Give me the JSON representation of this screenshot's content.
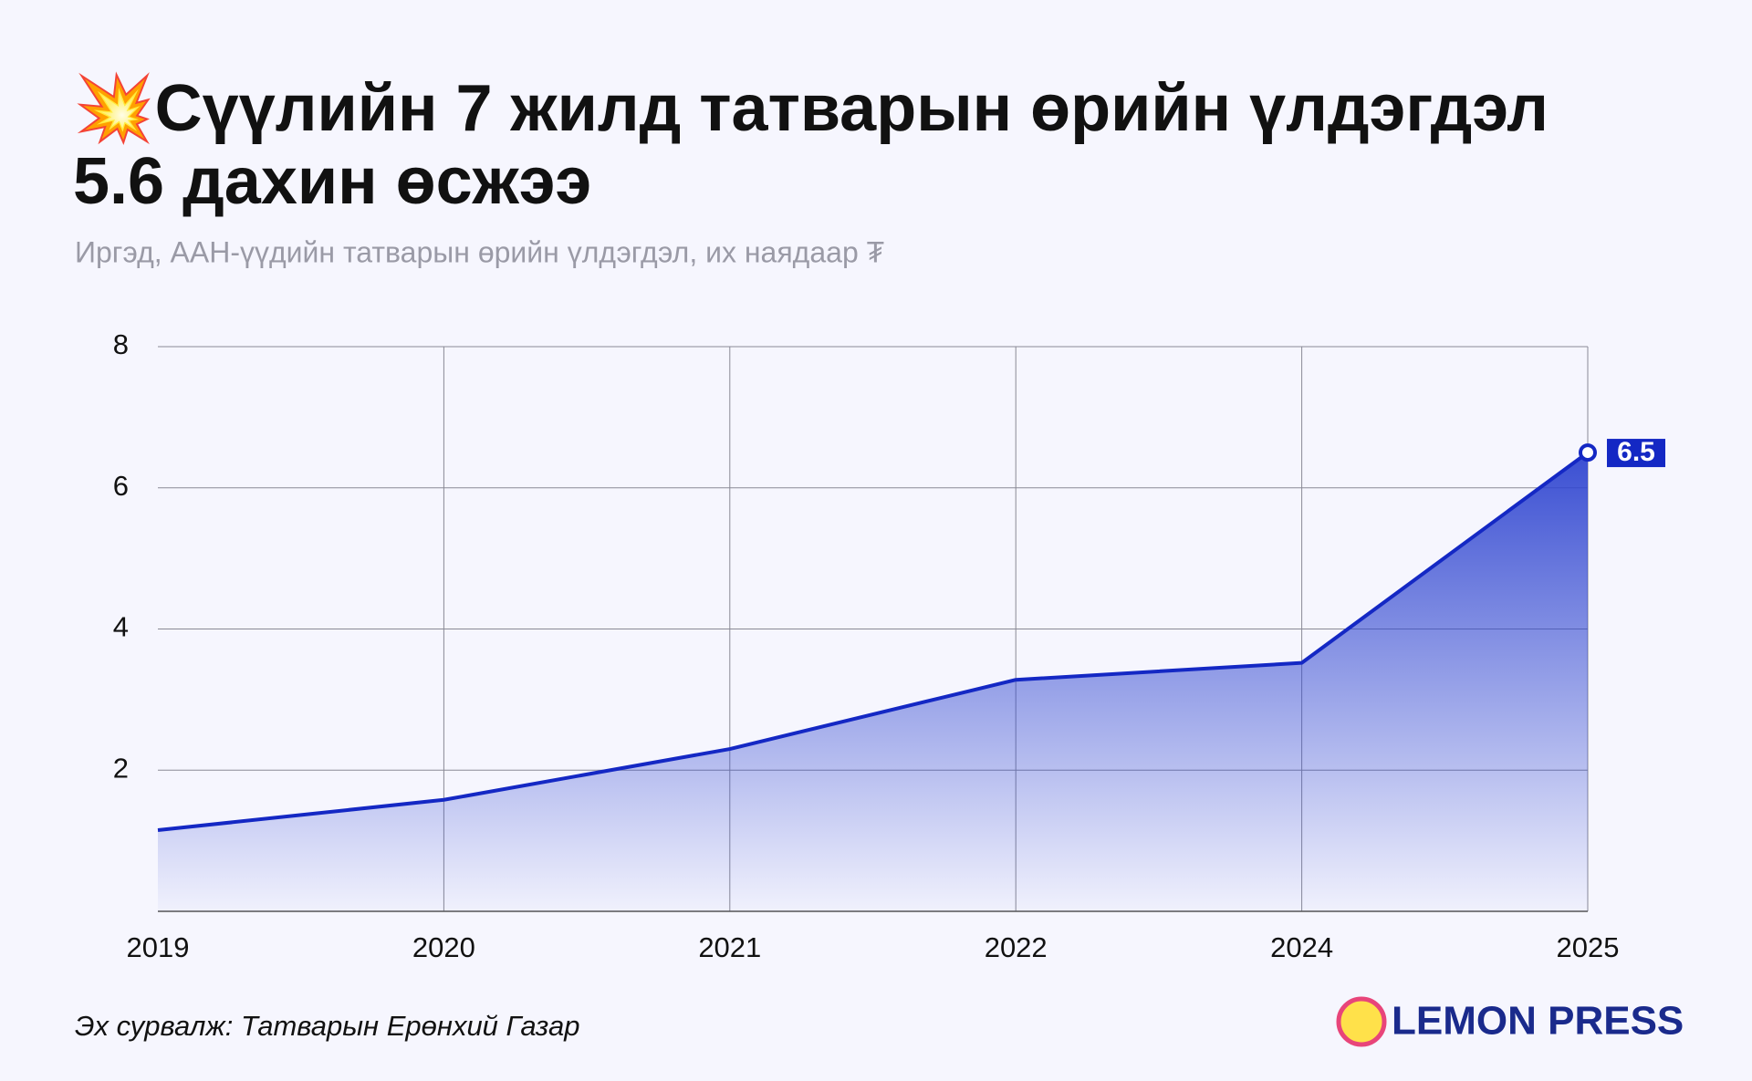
{
  "chart_data": {
    "type": "area",
    "title": "💥Сүүлийн 7 жилд татварын өрийн үлдэгдэл",
    "title_line2": "5.6 дахин өсжээ",
    "subtitle": "Иргэд, ААН-үүдийн татварын өрийн үлдэгдэл, их наядаар ₮",
    "categories": [
      "2019",
      "2020",
      "2021",
      "2022",
      "2024",
      "2025"
    ],
    "values": [
      1.15,
      1.58,
      2.3,
      3.28,
      3.52,
      6.5
    ],
    "color": "#1428c4",
    "ylim": [
      0,
      8
    ],
    "yticks": [
      2,
      4,
      6,
      8
    ],
    "grid": true,
    "source": "Эх сурвалж: Татварын Ерөнхий Газар",
    "brand": "LEMON PRESS"
  }
}
